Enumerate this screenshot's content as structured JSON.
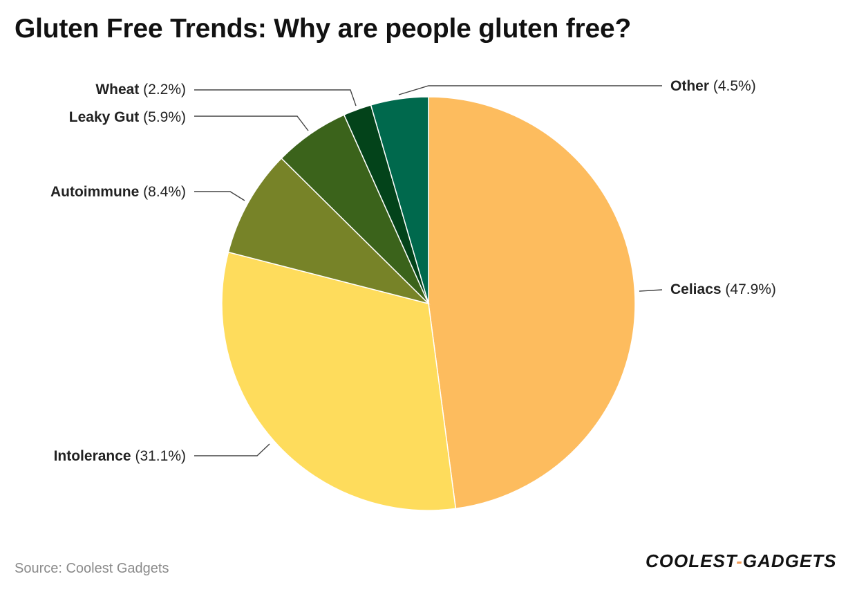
{
  "chart_data": {
    "type": "pie",
    "title": "Gluten Free Trends: Why are people gluten free?",
    "slices": [
      {
        "name": "Celiacs",
        "value": 47.9,
        "pct_label": "(47.9%)",
        "color": "#FDBC5E"
      },
      {
        "name": "Intolerance",
        "value": 31.1,
        "pct_label": "(31.1%)",
        "color": "#FEDC5C"
      },
      {
        "name": "Autoimmune",
        "value": 8.4,
        "pct_label": "(8.4%)",
        "color": "#778328"
      },
      {
        "name": "Leaky Gut",
        "value": 5.9,
        "pct_label": "(5.9%)",
        "color": "#3B631B"
      },
      {
        "name": "Wheat",
        "value": 2.2,
        "pct_label": "(2.2%)",
        "color": "#03431A"
      },
      {
        "name": "Other",
        "value": 4.5,
        "pct_label": "(4.5%)",
        "color": "#00694D"
      }
    ]
  },
  "footer": {
    "source": "Source: Coolest Gadgets",
    "brand_left": "COOLEST",
    "brand_sep": "-",
    "brand_right": "GADGETS"
  }
}
